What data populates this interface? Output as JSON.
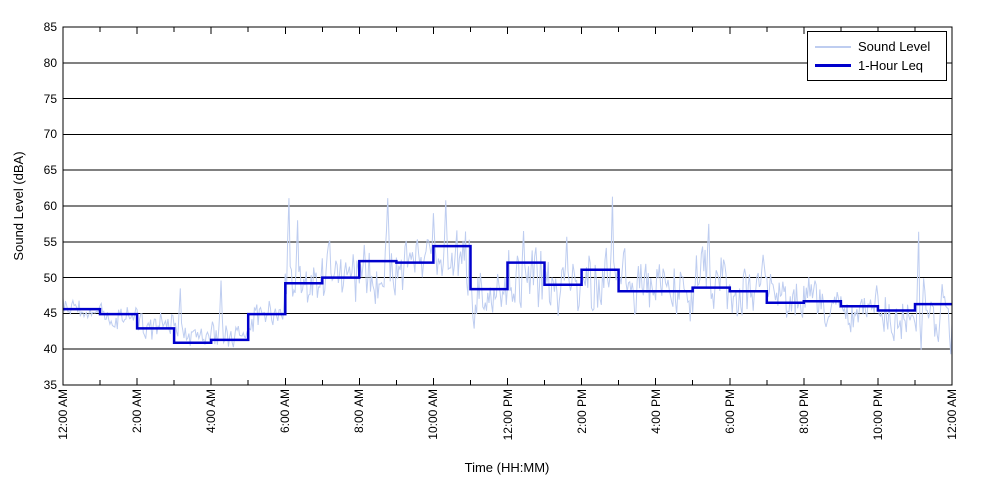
{
  "chart_data": {
    "type": "line",
    "title": "",
    "xlabel": "Time (HH:MM)",
    "ylabel": "Sound Level (dBA)",
    "ylim": [
      35,
      85
    ],
    "ytick_labels": [
      "35",
      "40",
      "45",
      "50",
      "55",
      "60",
      "65",
      "70",
      "75",
      "80",
      "85"
    ],
    "x_hours_range": [
      0,
      24
    ],
    "xtick_labels": [
      "12:00 AM",
      "2:00 AM",
      "4:00 AM",
      "6:00 AM",
      "8:00 AM",
      "10:00 AM",
      "12:00 PM",
      "2:00 PM",
      "4:00 PM",
      "6:00 PM",
      "8:00 PM",
      "10:00 PM",
      "12:00 AM"
    ],
    "xtick_label_every_hours": 2,
    "minor_tick_every_hours": 1,
    "grid": "horizontal solid black lines every 5 dBA",
    "legend_position": "top-right",
    "series": [
      {
        "name": "Sound Level",
        "color": "#becdf0",
        "line_width": 1,
        "kind": "noisy high-frequency trace; hourly_envelope gives typical min/max band read from plot",
        "hourly_envelope": [
          {
            "hour": "12 AM",
            "lo": 43.5,
            "hi": 47.5
          },
          {
            "hour": "1 AM",
            "lo": 42.3,
            "hi": 47.0
          },
          {
            "hour": "2 AM",
            "lo": 40.5,
            "hi": 46.5
          },
          {
            "hour": "3 AM",
            "lo": 39.5,
            "hi": 44.0
          },
          {
            "hour": "4 AM",
            "lo": 39.5,
            "hi": 45.0
          },
          {
            "hour": "5 AM",
            "lo": 41.5,
            "hi": 47.5
          },
          {
            "hour": "6 AM",
            "lo": 44.0,
            "hi": 54.0
          },
          {
            "hour": "7 AM",
            "lo": 44.5,
            "hi": 55.5
          },
          {
            "hour": "8 AM",
            "lo": 45.5,
            "hi": 56.0
          },
          {
            "hour": "9 AM",
            "lo": 46.0,
            "hi": 56.5
          },
          {
            "hour": "10 AM",
            "lo": 46.5,
            "hi": 58.5
          },
          {
            "hour": "11 AM",
            "lo": 42.5,
            "hi": 53.0
          },
          {
            "hour": "12 PM",
            "lo": 43.5,
            "hi": 56.0
          },
          {
            "hour": "1 PM",
            "lo": 43.0,
            "hi": 53.5
          },
          {
            "hour": "2 PM",
            "lo": 43.0,
            "hi": 55.0
          },
          {
            "hour": "3 PM",
            "lo": 43.0,
            "hi": 54.0
          },
          {
            "hour": "4 PM",
            "lo": 42.5,
            "hi": 53.5
          },
          {
            "hour": "5 PM",
            "lo": 43.5,
            "hi": 55.0
          },
          {
            "hour": "6 PM",
            "lo": 43.5,
            "hi": 53.5
          },
          {
            "hour": "7 PM",
            "lo": 42.5,
            "hi": 52.0
          },
          {
            "hour": "8 PM",
            "lo": 42.5,
            "hi": 51.5
          },
          {
            "hour": "9 PM",
            "lo": 41.5,
            "hi": 50.0
          },
          {
            "hour": "10 PM",
            "lo": 40.5,
            "hi": 49.5
          },
          {
            "hour": "11 PM",
            "lo": 40.0,
            "hi": 50.5
          }
        ],
        "notable_extremes": [
          {
            "time": "03:10",
            "value": 48.5
          },
          {
            "time": "04:15",
            "value": 49.6
          },
          {
            "time": "06:05",
            "value": 61.1
          },
          {
            "time": "06:20",
            "value": 58.0
          },
          {
            "time": "08:45",
            "value": 61.1
          },
          {
            "time": "10:00",
            "value": 59.0
          },
          {
            "time": "10:20",
            "value": 60.8
          },
          {
            "time": "12:25",
            "value": 56.5
          },
          {
            "time": "13:35",
            "value": 55.7
          },
          {
            "time": "14:50",
            "value": 61.3
          },
          {
            "time": "17:25",
            "value": 57.5
          },
          {
            "time": "23:05",
            "value": 56.4
          },
          {
            "time": "23:10",
            "value": 39.9
          },
          {
            "time": "23:58",
            "value": 39.3
          }
        ],
        "noise_seed": 20240612,
        "points_per_hour": 30
      },
      {
        "name": "1-Hour Leq",
        "color": "#0000cc",
        "line_width": 2.5,
        "kind": "step",
        "hourly_values": [
          45.6,
          44.9,
          42.9,
          40.9,
          41.3,
          44.9,
          49.2,
          50.0,
          52.3,
          52.1,
          54.4,
          48.4,
          52.1,
          49.0,
          51.1,
          48.1,
          48.1,
          48.6,
          48.1,
          46.5,
          46.7,
          46.0,
          45.4,
          46.3
        ]
      }
    ]
  }
}
